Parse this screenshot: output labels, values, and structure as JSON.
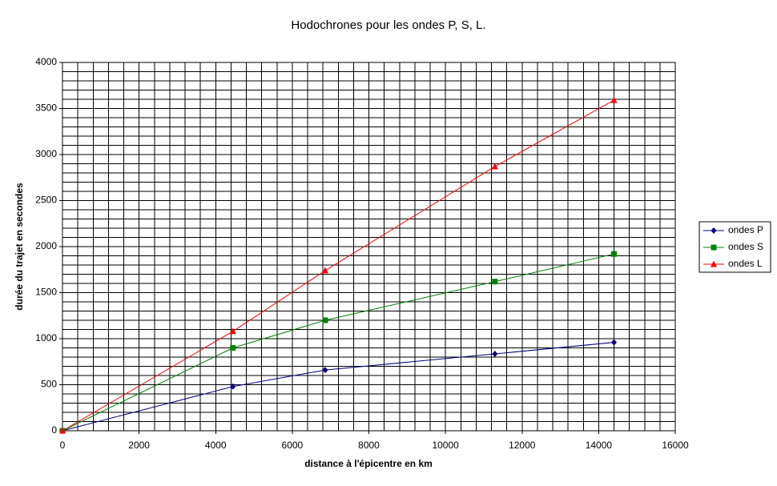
{
  "chart_data": {
    "type": "line",
    "title": "Hodochrones pour les ondes P, S, L.",
    "x_label": "distance à l'épicentre en km",
    "y_label": "durée du trajet en secondes",
    "x": [
      0,
      4450,
      6860,
      11290,
      14400
    ],
    "series": [
      {
        "name": "ondes P",
        "color": "#000080",
        "marker": "diamond",
        "values": [
          0,
          480,
          660,
          835,
          960
        ]
      },
      {
        "name": "ondes S",
        "color": "#008000",
        "marker": "square",
        "values": [
          0,
          900,
          1200,
          1620,
          1920
        ]
      },
      {
        "name": "ondes L",
        "color": "#ff0000",
        "marker": "triangle",
        "values": [
          0,
          1080,
          1740,
          2870,
          3590
        ]
      }
    ],
    "xlim": [
      0,
      16000
    ],
    "xticks": [
      0,
      2000,
      4000,
      6000,
      8000,
      10000,
      12000,
      14000,
      16000
    ],
    "ylim": [
      0,
      4000
    ],
    "yticks": [
      0,
      500,
      1000,
      1500,
      2000,
      2500,
      3000,
      3500,
      4000
    ],
    "grid": true,
    "minor_per_major": 5,
    "legend": "right"
  }
}
